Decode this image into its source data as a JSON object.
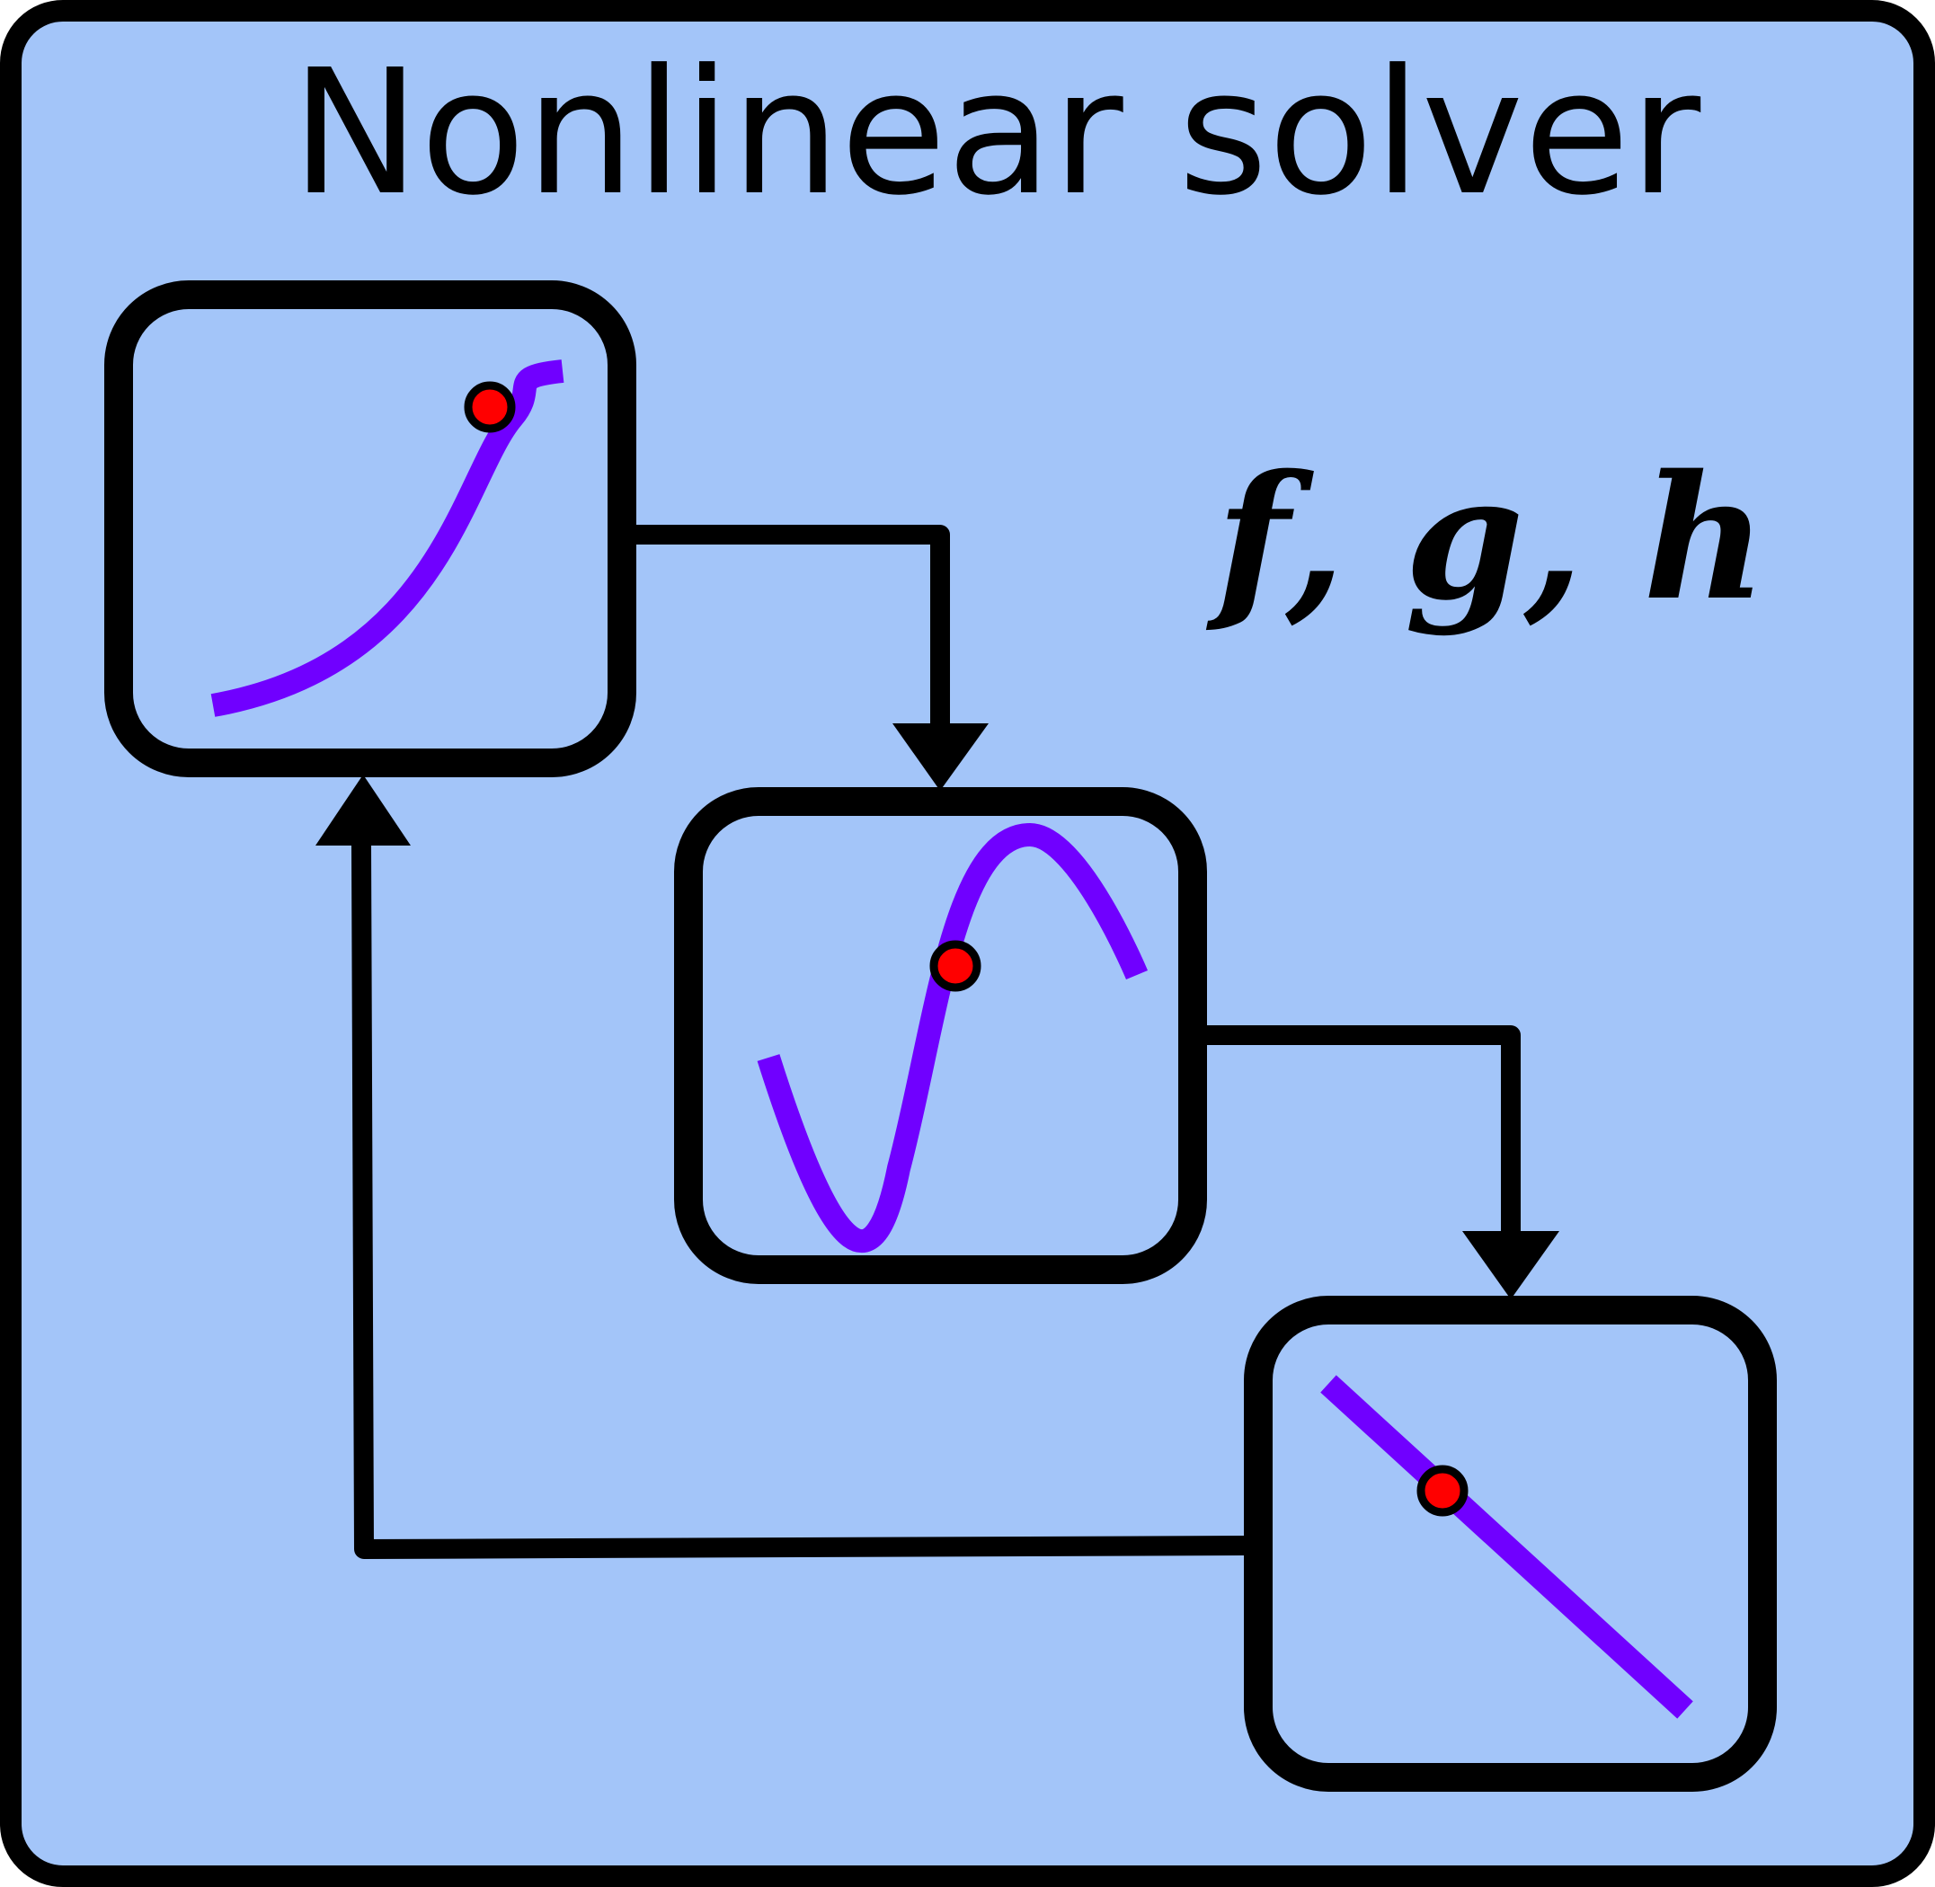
{
  "diagram": {
    "title": "Nonlinear solver",
    "functions_label": "f, g, h",
    "colors": {
      "background": "#a3c5f9",
      "border": "#000000",
      "curve": "#7000ff",
      "point": "#ff0000"
    },
    "nodes": [
      {
        "id": "sigmoid-box",
        "curve": "s-shaped-curve"
      },
      {
        "id": "sine-box",
        "curve": "sine-curve"
      },
      {
        "id": "linear-box",
        "curve": "linear-decreasing"
      }
    ],
    "edges": [
      {
        "from": "sigmoid-box",
        "to": "sine-box"
      },
      {
        "from": "sine-box",
        "to": "linear-box"
      },
      {
        "from": "linear-box",
        "to": "sigmoid-box"
      }
    ]
  }
}
